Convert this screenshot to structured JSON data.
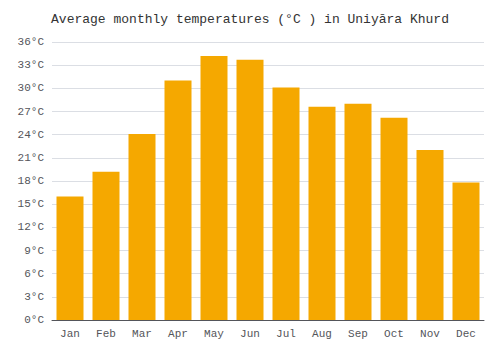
{
  "chart_data": {
    "type": "bar",
    "title": "Average monthly temperatures (°C ) in Uniyāra Khurd",
    "categories": [
      "Jan",
      "Feb",
      "Mar",
      "Apr",
      "May",
      "Jun",
      "Jul",
      "Aug",
      "Sep",
      "Oct",
      "Nov",
      "Dec"
    ],
    "values": [
      16.0,
      19.2,
      24.1,
      31.0,
      34.2,
      33.7,
      30.1,
      27.6,
      28.0,
      26.2,
      22.0,
      17.8
    ],
    "color": "#F5A800",
    "ylim": [
      0,
      36
    ],
    "yticks": [
      {
        "value": 0,
        "label": "0°C"
      },
      {
        "value": 3,
        "label": "3°C"
      },
      {
        "value": 6,
        "label": "6°C"
      },
      {
        "value": 9,
        "label": "9°C"
      },
      {
        "value": 12,
        "label": "12°C"
      },
      {
        "value": 15,
        "label": "15°C"
      },
      {
        "value": 18,
        "label": "18°C"
      },
      {
        "value": 21,
        "label": "21°C"
      },
      {
        "value": 24,
        "label": "24°C"
      },
      {
        "value": 27,
        "label": "27°C"
      },
      {
        "value": 30,
        "label": "30°C"
      },
      {
        "value": 33,
        "label": "33°C"
      },
      {
        "value": 36,
        "label": "36°C"
      }
    ],
    "grid": true
  }
}
